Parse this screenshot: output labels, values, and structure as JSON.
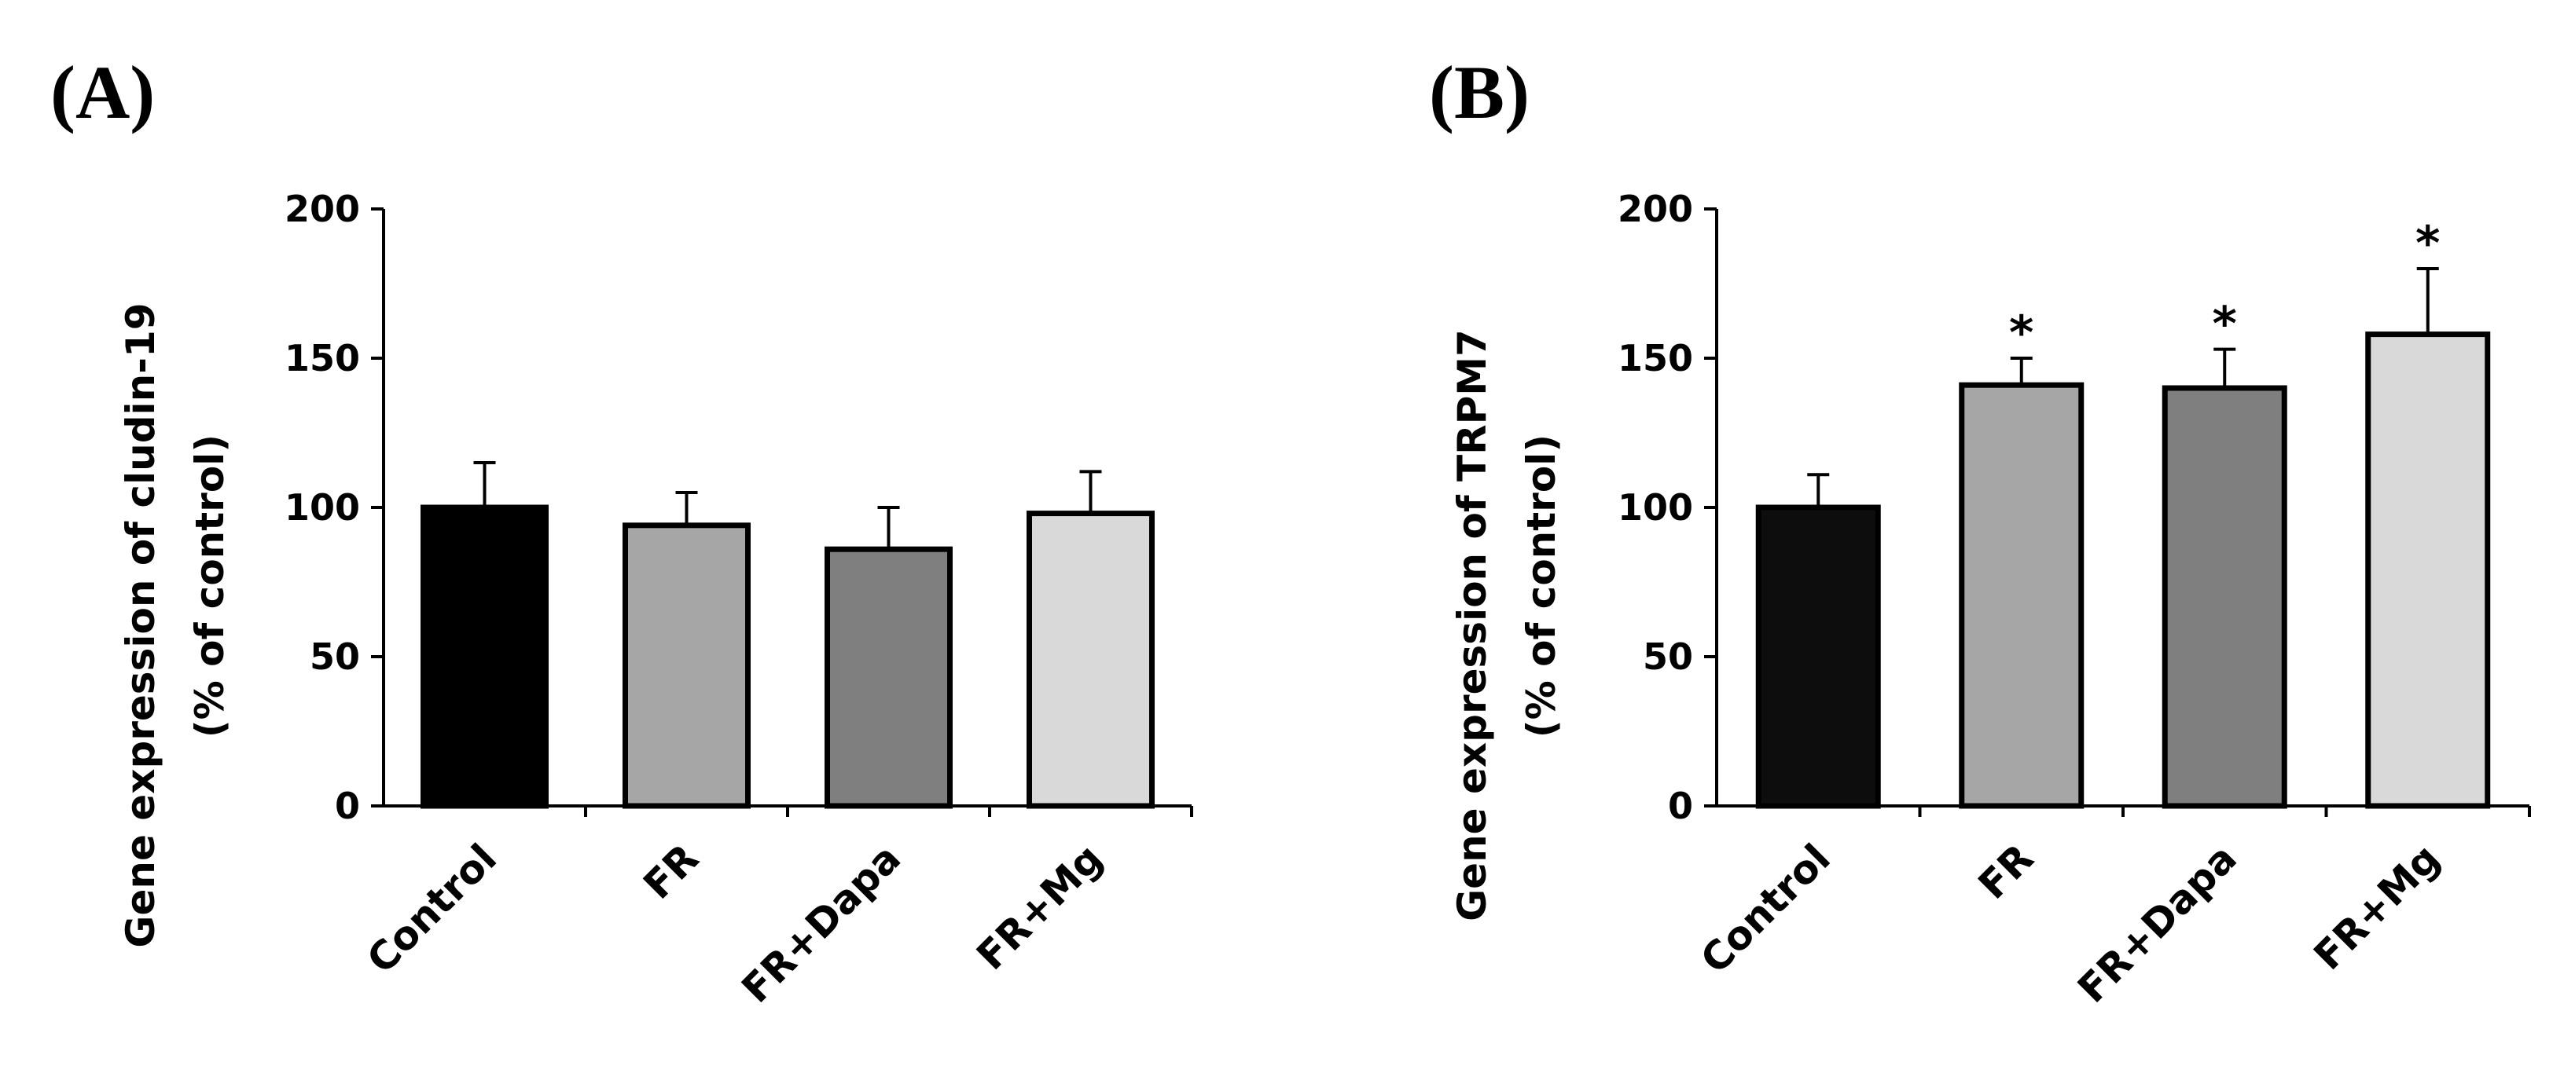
{
  "chart_data": [
    {
      "panel": "(A)",
      "type": "bar",
      "ylabel_line1": "Gene expression of cludin-19",
      "ylabel_line2": "(% of control)",
      "xlabel": "",
      "ylim": [
        0,
        200
      ],
      "yticks": [
        0,
        50,
        100,
        150,
        200
      ],
      "categories": [
        "Control",
        "FR",
        "FR+Dapa",
        "FR+Mg"
      ],
      "values": [
        100,
        94,
        86,
        98
      ],
      "errors": [
        15,
        11,
        14,
        14
      ],
      "significance": [
        "",
        "",
        "",
        ""
      ],
      "colors": [
        "#000000",
        "#a6a6a6",
        "#7f7f7f",
        "#d9d9d9"
      ]
    },
    {
      "panel": "(B)",
      "type": "bar",
      "ylabel_line1": "Gene expression of TRPM7",
      "ylabel_line2": "(% of control)",
      "xlabel": "",
      "ylim": [
        0,
        200
      ],
      "yticks": [
        0,
        50,
        100,
        150,
        200
      ],
      "categories": [
        "Control",
        "FR",
        "FR+Dapa",
        "FR+Mg"
      ],
      "values": [
        100,
        141,
        140,
        158
      ],
      "errors": [
        11,
        9,
        13,
        22
      ],
      "significance": [
        "",
        "*",
        "*",
        "*"
      ],
      "colors": [
        "#0d0d0d",
        "#a6a6a6",
        "#7f7f7f",
        "#d9d9d9"
      ]
    }
  ]
}
